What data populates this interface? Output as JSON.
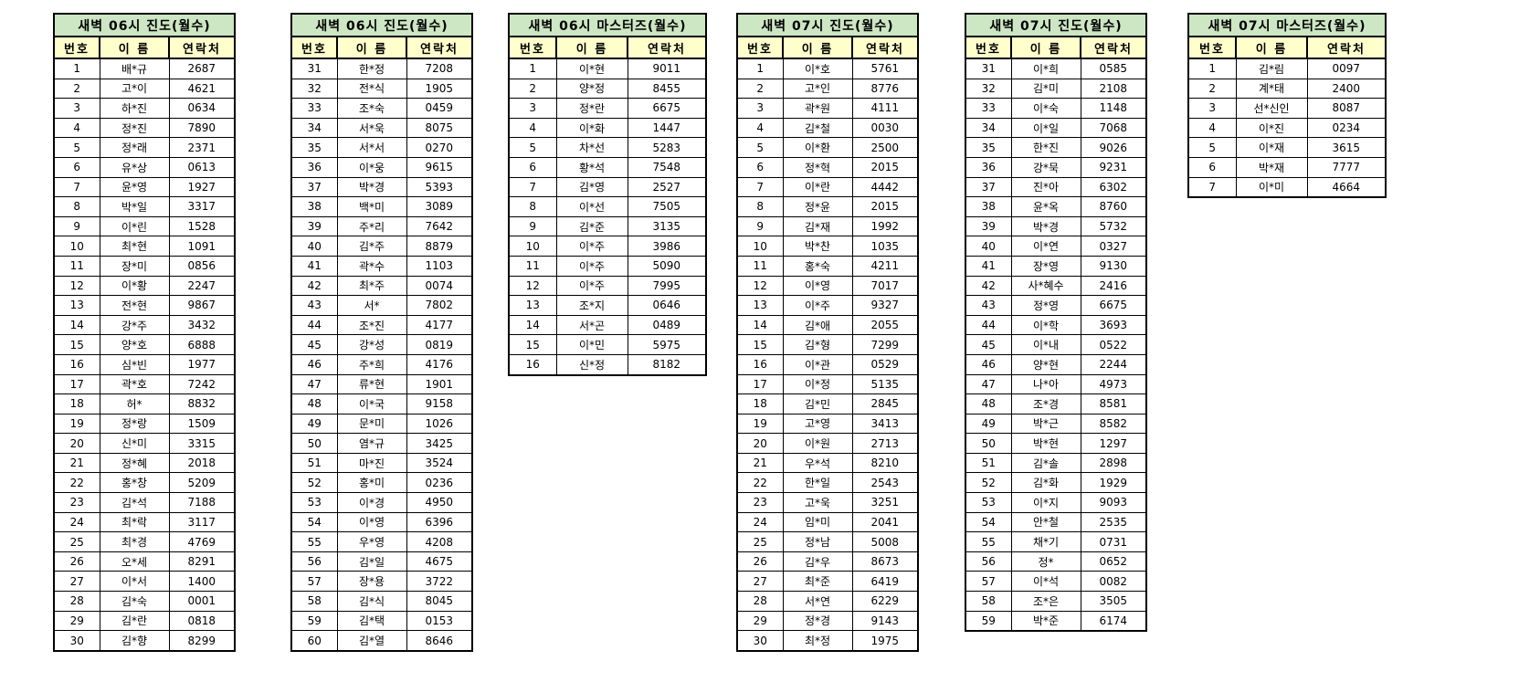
{
  "page": {
    "background_color": "#FFFFFF",
    "title_row_color": "#CDE6C3",
    "header_row_color": "#FFFFCC",
    "border_color": "#000000",
    "text_color": "#000000"
  },
  "tables": [
    {
      "title": "새벽 06시 진도(월수)",
      "columns": [
        "번호",
        "이 름",
        "연락처"
      ],
      "rows": [
        [
          "1",
          "배*규",
          "2687"
        ],
        [
          "2",
          "고*이",
          "4621"
        ],
        [
          "3",
          "하*진",
          "0634"
        ],
        [
          "4",
          "정*진",
          "7890"
        ],
        [
          "5",
          "정*래",
          "2371"
        ],
        [
          "6",
          "유*상",
          "0613"
        ],
        [
          "7",
          "윤*영",
          "1927"
        ],
        [
          "8",
          "박*일",
          "3317"
        ],
        [
          "9",
          "이*린",
          "1528"
        ],
        [
          "10",
          "최*현",
          "1091"
        ],
        [
          "11",
          "장*미",
          "0856"
        ],
        [
          "12",
          "이*황",
          "2247"
        ],
        [
          "13",
          "전*현",
          "9867"
        ],
        [
          "14",
          "강*주",
          "3432"
        ],
        [
          "15",
          "양*호",
          "6888"
        ],
        [
          "16",
          "심*빈",
          "1977"
        ],
        [
          "17",
          "곽*호",
          "7242"
        ],
        [
          "18",
          "허*",
          "8832"
        ],
        [
          "19",
          "정*랑",
          "1509"
        ],
        [
          "20",
          "신*미",
          "3315"
        ],
        [
          "21",
          "정*혜",
          "2018"
        ],
        [
          "22",
          "홍*창",
          "5209"
        ],
        [
          "23",
          "김*석",
          "7188"
        ],
        [
          "24",
          "최*락",
          "3117"
        ],
        [
          "25",
          "최*경",
          "4769"
        ],
        [
          "26",
          "오*세",
          "8291"
        ],
        [
          "27",
          "이*서",
          "1400"
        ],
        [
          "28",
          "김*숙",
          "0001"
        ],
        [
          "29",
          "김*란",
          "0818"
        ],
        [
          "30",
          "김*향",
          "8299"
        ]
      ]
    },
    {
      "title": "새벽 06시 진도(월수)",
      "columns": [
        "번호",
        "이 름",
        "연락처"
      ],
      "rows": [
        [
          "31",
          "한*정",
          "7208"
        ],
        [
          "32",
          "전*식",
          "1905"
        ],
        [
          "33",
          "조*숙",
          "0459"
        ],
        [
          "34",
          "서*욱",
          "8075"
        ],
        [
          "35",
          "서*서",
          "0270"
        ],
        [
          "36",
          "이*웅",
          "9615"
        ],
        [
          "37",
          "박*경",
          "5393"
        ],
        [
          "38",
          "백*미",
          "3089"
        ],
        [
          "39",
          "주*리",
          "7642"
        ],
        [
          "40",
          "김*주",
          "8879"
        ],
        [
          "41",
          "곽*수",
          "1103"
        ],
        [
          "42",
          "최*주",
          "0074"
        ],
        [
          "43",
          "서*",
          "7802"
        ],
        [
          "44",
          "조*진",
          "4177"
        ],
        [
          "45",
          "강*성",
          "0819"
        ],
        [
          "46",
          "주*희",
          "4176"
        ],
        [
          "47",
          "류*현",
          "1901"
        ],
        [
          "48",
          "이*국",
          "9158"
        ],
        [
          "49",
          "문*미",
          "1026"
        ],
        [
          "50",
          "염*규",
          "3425"
        ],
        [
          "51",
          "마*진",
          "3524"
        ],
        [
          "52",
          "홍*미",
          "0236"
        ],
        [
          "53",
          "이*경",
          "4950"
        ],
        [
          "54",
          "이*영",
          "6396"
        ],
        [
          "55",
          "우*영",
          "4208"
        ],
        [
          "56",
          "김*일",
          "4675"
        ],
        [
          "57",
          "장*용",
          "3722"
        ],
        [
          "58",
          "김*식",
          "8045"
        ],
        [
          "59",
          "김*택",
          "0153"
        ],
        [
          "60",
          "김*열",
          "8646"
        ]
      ]
    },
    {
      "title": "새벽 06시 마스터즈(월수)",
      "columns": [
        "번호",
        "이 름",
        "연락처"
      ],
      "rows": [
        [
          "1",
          "이*현",
          "9011"
        ],
        [
          "2",
          "양*정",
          "8455"
        ],
        [
          "3",
          "정*란",
          "6675"
        ],
        [
          "4",
          "이*화",
          "1447"
        ],
        [
          "5",
          "차*선",
          "5283"
        ],
        [
          "6",
          "황*석",
          "7548"
        ],
        [
          "7",
          "김*영",
          "2527"
        ],
        [
          "8",
          "이*선",
          "7505"
        ],
        [
          "9",
          "김*준",
          "3135"
        ],
        [
          "10",
          "이*주",
          "3986"
        ],
        [
          "11",
          "이*주",
          "5090"
        ],
        [
          "12",
          "이*주",
          "7995"
        ],
        [
          "13",
          "조*지",
          "0646"
        ],
        [
          "14",
          "서*곤",
          "0489"
        ],
        [
          "15",
          "이*민",
          "5975"
        ],
        [
          "16",
          "신*정",
          "8182"
        ]
      ]
    },
    {
      "title": "새벽 07시 진도(월수)",
      "columns": [
        "번호",
        "이 름",
        "연락처"
      ],
      "rows": [
        [
          "1",
          "이*호",
          "5761"
        ],
        [
          "2",
          "고*인",
          "8776"
        ],
        [
          "3",
          "곽*원",
          "4111"
        ],
        [
          "4",
          "김*철",
          "0030"
        ],
        [
          "5",
          "이*환",
          "2500"
        ],
        [
          "6",
          "정*혁",
          "2015"
        ],
        [
          "7",
          "이*란",
          "4442"
        ],
        [
          "8",
          "정*윤",
          "2015"
        ],
        [
          "9",
          "김*재",
          "1992"
        ],
        [
          "10",
          "박*찬",
          "1035"
        ],
        [
          "11",
          "홍*숙",
          "4211"
        ],
        [
          "12",
          "이*영",
          "7017"
        ],
        [
          "13",
          "이*주",
          "9327"
        ],
        [
          "14",
          "김*애",
          "2055"
        ],
        [
          "15",
          "김*형",
          "7299"
        ],
        [
          "16",
          "이*관",
          "0529"
        ],
        [
          "17",
          "이*정",
          "5135"
        ],
        [
          "18",
          "김*민",
          "2845"
        ],
        [
          "19",
          "고*영",
          "3413"
        ],
        [
          "20",
          "이*원",
          "2713"
        ],
        [
          "21",
          "우*석",
          "8210"
        ],
        [
          "22",
          "한*일",
          "2543"
        ],
        [
          "23",
          "고*욱",
          "3251"
        ],
        [
          "24",
          "임*미",
          "2041"
        ],
        [
          "25",
          "정*남",
          "5008"
        ],
        [
          "26",
          "김*우",
          "8673"
        ],
        [
          "27",
          "최*준",
          "6419"
        ],
        [
          "28",
          "서*연",
          "6229"
        ],
        [
          "29",
          "정*경",
          "9143"
        ],
        [
          "30",
          "최*정",
          "1975"
        ]
      ]
    },
    {
      "title": "새벽 07시 진도(월수)",
      "columns": [
        "번호",
        "이 름",
        "연락처"
      ],
      "rows": [
        [
          "31",
          "이*희",
          "0585"
        ],
        [
          "32",
          "김*미",
          "2108"
        ],
        [
          "33",
          "이*숙",
          "1148"
        ],
        [
          "34",
          "이*일",
          "7068"
        ],
        [
          "35",
          "한*진",
          "9026"
        ],
        [
          "36",
          "강*묵",
          "9231"
        ],
        [
          "37",
          "진*아",
          "6302"
        ],
        [
          "38",
          "윤*옥",
          "8760"
        ],
        [
          "39",
          "박*경",
          "5732"
        ],
        [
          "40",
          "이*연",
          "0327"
        ],
        [
          "41",
          "장*영",
          "9130"
        ],
        [
          "42",
          "사*혜수",
          "2416"
        ],
        [
          "43",
          "정*영",
          "6675"
        ],
        [
          "44",
          "이*학",
          "3693"
        ],
        [
          "45",
          "이*내",
          "0522"
        ],
        [
          "46",
          "양*현",
          "2244"
        ],
        [
          "47",
          "나*아",
          "4973"
        ],
        [
          "48",
          "조*경",
          "8581"
        ],
        [
          "49",
          "박*근",
          "8582"
        ],
        [
          "50",
          "박*현",
          "1297"
        ],
        [
          "51",
          "김*솔",
          "2898"
        ],
        [
          "52",
          "김*화",
          "1929"
        ],
        [
          "53",
          "이*지",
          "9093"
        ],
        [
          "54",
          "안*철",
          "2535"
        ],
        [
          "55",
          "채*기",
          "0731"
        ],
        [
          "56",
          "정*",
          "0652"
        ],
        [
          "57",
          "이*석",
          "0082"
        ],
        [
          "58",
          "조*은",
          "3505"
        ],
        [
          "59",
          "박*준",
          "6174"
        ]
      ]
    },
    {
      "title": "새벽 07시 마스터즈(월수)",
      "columns": [
        "번호",
        "이 름",
        "연락처"
      ],
      "rows": [
        [
          "1",
          "김*림",
          "0097"
        ],
        [
          "2",
          "계*태",
          "2400"
        ],
        [
          "3",
          "선*신인",
          "8087"
        ],
        [
          "4",
          "이*진",
          "0234"
        ],
        [
          "5",
          "이*재",
          "3615"
        ],
        [
          "6",
          "박*재",
          "7777"
        ],
        [
          "7",
          "이*미",
          "4664"
        ]
      ]
    }
  ]
}
